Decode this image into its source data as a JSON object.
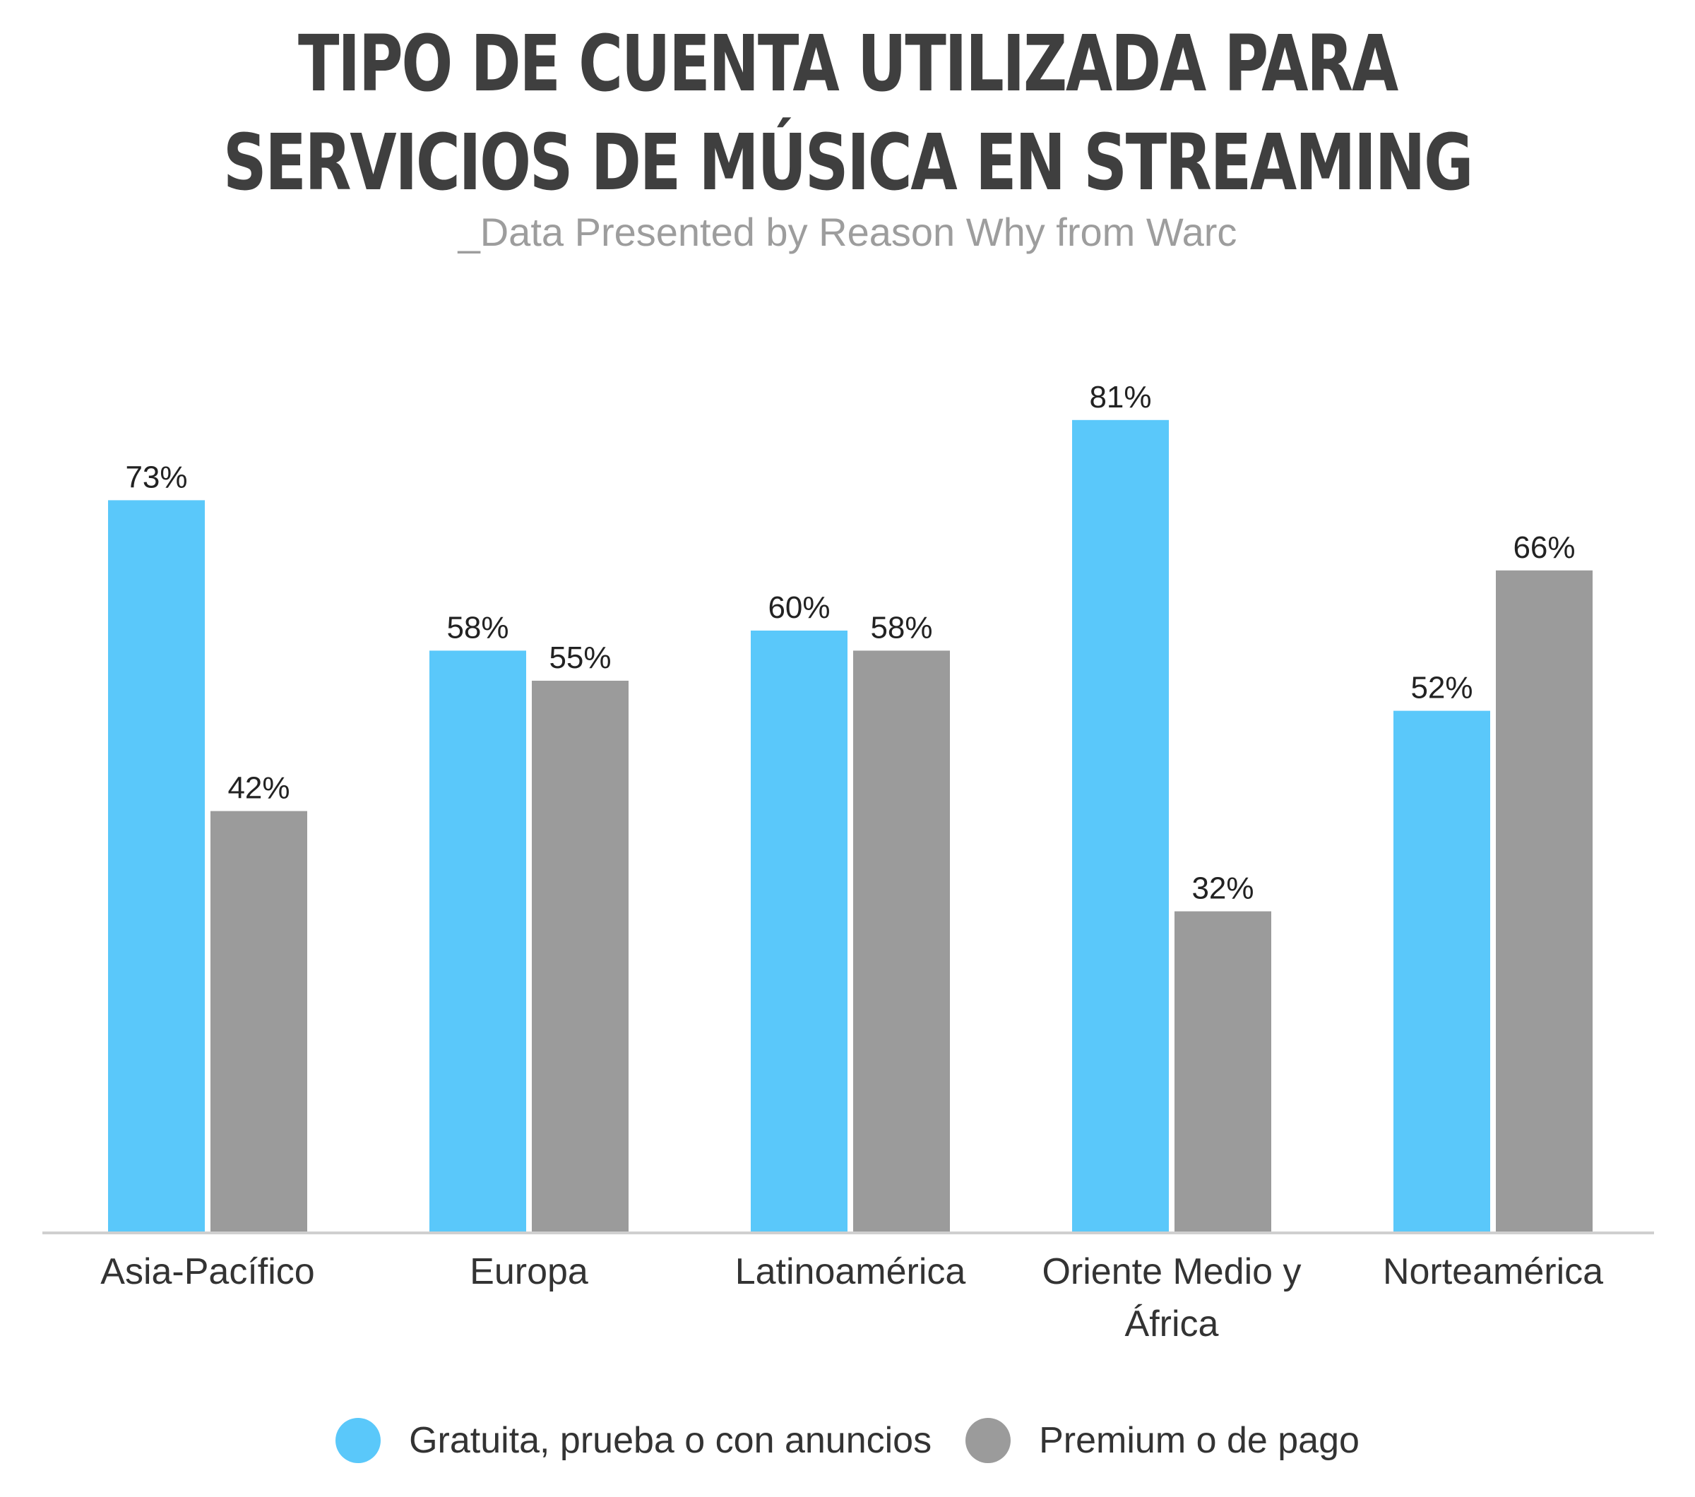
{
  "title": "TIPO DE CUENTA UTILIZADA PARA SERVICIOS DE MÚSICA EN STREAMING",
  "subtitle": "_Data Presented by Reason Why from Warc",
  "colors": {
    "free": "#5ac8fa",
    "premium": "#9b9b9b",
    "axis": "#cfcfcf",
    "text": "#222222"
  },
  "chart_data": {
    "type": "bar",
    "categories": [
      [
        "Asia-Pacífico"
      ],
      [
        "Europa"
      ],
      [
        "Latinoamérica"
      ],
      [
        "Oriente Medio y",
        "África"
      ],
      [
        "Norteamérica"
      ]
    ],
    "series": [
      {
        "name": "Gratuita, prueba o con anuncios",
        "values": [
          73,
          58,
          60,
          81,
          52
        ],
        "labels": [
          "73%",
          "58%",
          "60%",
          "81%",
          "52%"
        ]
      },
      {
        "name": "Premium o de pago",
        "values": [
          42,
          55,
          58,
          32,
          66
        ],
        "labels": [
          "42%",
          "55%",
          "58%",
          "32%",
          "66%"
        ]
      }
    ],
    "ylim": [
      0,
      100
    ],
    "legend": "bottom",
    "grid": false
  }
}
